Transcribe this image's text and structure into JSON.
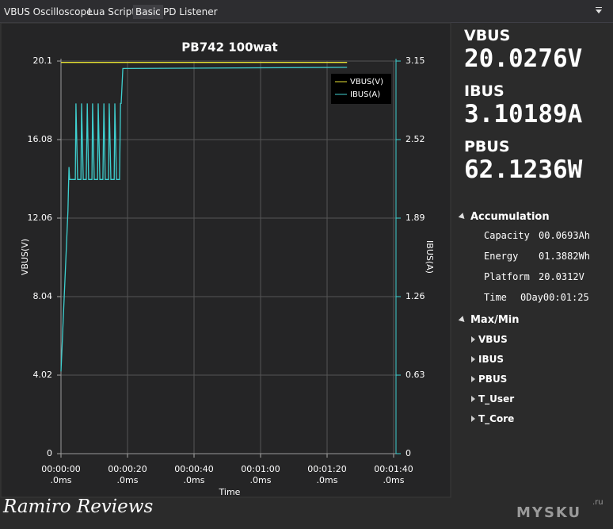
{
  "tabs": [
    "VBUS Oscilloscope",
    "Lua Script",
    "Basic",
    "PD Listener"
  ],
  "chart_data": {
    "type": "line",
    "title": "PB742 100wat",
    "x_label": "Time",
    "y_label": "VBUS(V)",
    "y2_label": "IBUS(A)",
    "xlim": [
      0,
      100
    ],
    "xticks": [
      {
        "value": 0,
        "label": "00:00:00\n.0ms"
      },
      {
        "value": 20,
        "label": "00:00:20\n.0ms"
      },
      {
        "value": 40,
        "label": "00:00:40\n.0ms"
      },
      {
        "value": 60,
        "label": "00:01:00\n.0ms"
      },
      {
        "value": 80,
        "label": "00:01:20\n.0ms"
      },
      {
        "value": 100,
        "label": "00:01:40\n.0ms"
      }
    ],
    "ylim": [
      0,
      20.1
    ],
    "yticks": [
      0,
      4.02,
      8.04,
      12.06,
      16.08,
      20.1
    ],
    "y2lim": [
      0,
      3.15
    ],
    "y2ticks": [
      0,
      0.63,
      1.26,
      1.89,
      2.52,
      3.15
    ],
    "grid": true,
    "legend": "upper right",
    "series": [
      {
        "name": "VBUS(V)",
        "color": "#e6e033",
        "x": [
          0,
          86
        ],
        "values": [
          20.03,
          20.03
        ]
      },
      {
        "name": "IBUS(A)",
        "color": "#3fd0d0",
        "axis": "y2",
        "x": [
          0,
          2.1,
          2.4,
          2.6,
          4.3,
          4.5,
          5.0,
          6.0,
          6.2,
          6.7,
          7.6,
          7.9,
          8.3,
          9.3,
          9.5,
          10.0,
          11.0,
          11.2,
          11.7,
          12.6,
          12.9,
          13.3,
          14.3,
          14.5,
          15.0,
          16.0,
          16.2,
          16.7,
          17.6,
          17.9,
          18.1,
          18.6,
          86
        ],
        "values": [
          0.66,
          1.95,
          2.3,
          2.2,
          2.2,
          2.81,
          2.2,
          2.2,
          2.81,
          2.2,
          2.2,
          2.81,
          2.2,
          2.2,
          2.81,
          2.2,
          2.2,
          2.81,
          2.2,
          2.2,
          2.81,
          2.2,
          2.2,
          2.81,
          2.2,
          2.2,
          2.81,
          2.2,
          2.2,
          2.81,
          2.81,
          3.09,
          3.1
        ]
      }
    ]
  },
  "readings": [
    {
      "label": "VBUS",
      "value": "20.0276V"
    },
    {
      "label": "IBUS",
      "value": "3.10189A"
    },
    {
      "label": "PBUS",
      "value": "62.1236W"
    }
  ],
  "accumulation": {
    "title": "Accumulation",
    "items": [
      {
        "label": "Capacity",
        "value": "00.0693Ah"
      },
      {
        "label": "Energy",
        "value": "01.3882Wh"
      },
      {
        "label": "Platform",
        "value": "20.0312V"
      },
      {
        "label": "Time",
        "value": "0Day00:01:25"
      }
    ]
  },
  "maxmin": {
    "title": "Max/Min",
    "items": [
      "VBUS",
      "IBUS",
      "PBUS",
      "T_User",
      "T_Core"
    ]
  },
  "watermark": {
    "left": "Ramiro Reviews",
    "right": "MYSKU",
    "suffix": ".ru"
  }
}
